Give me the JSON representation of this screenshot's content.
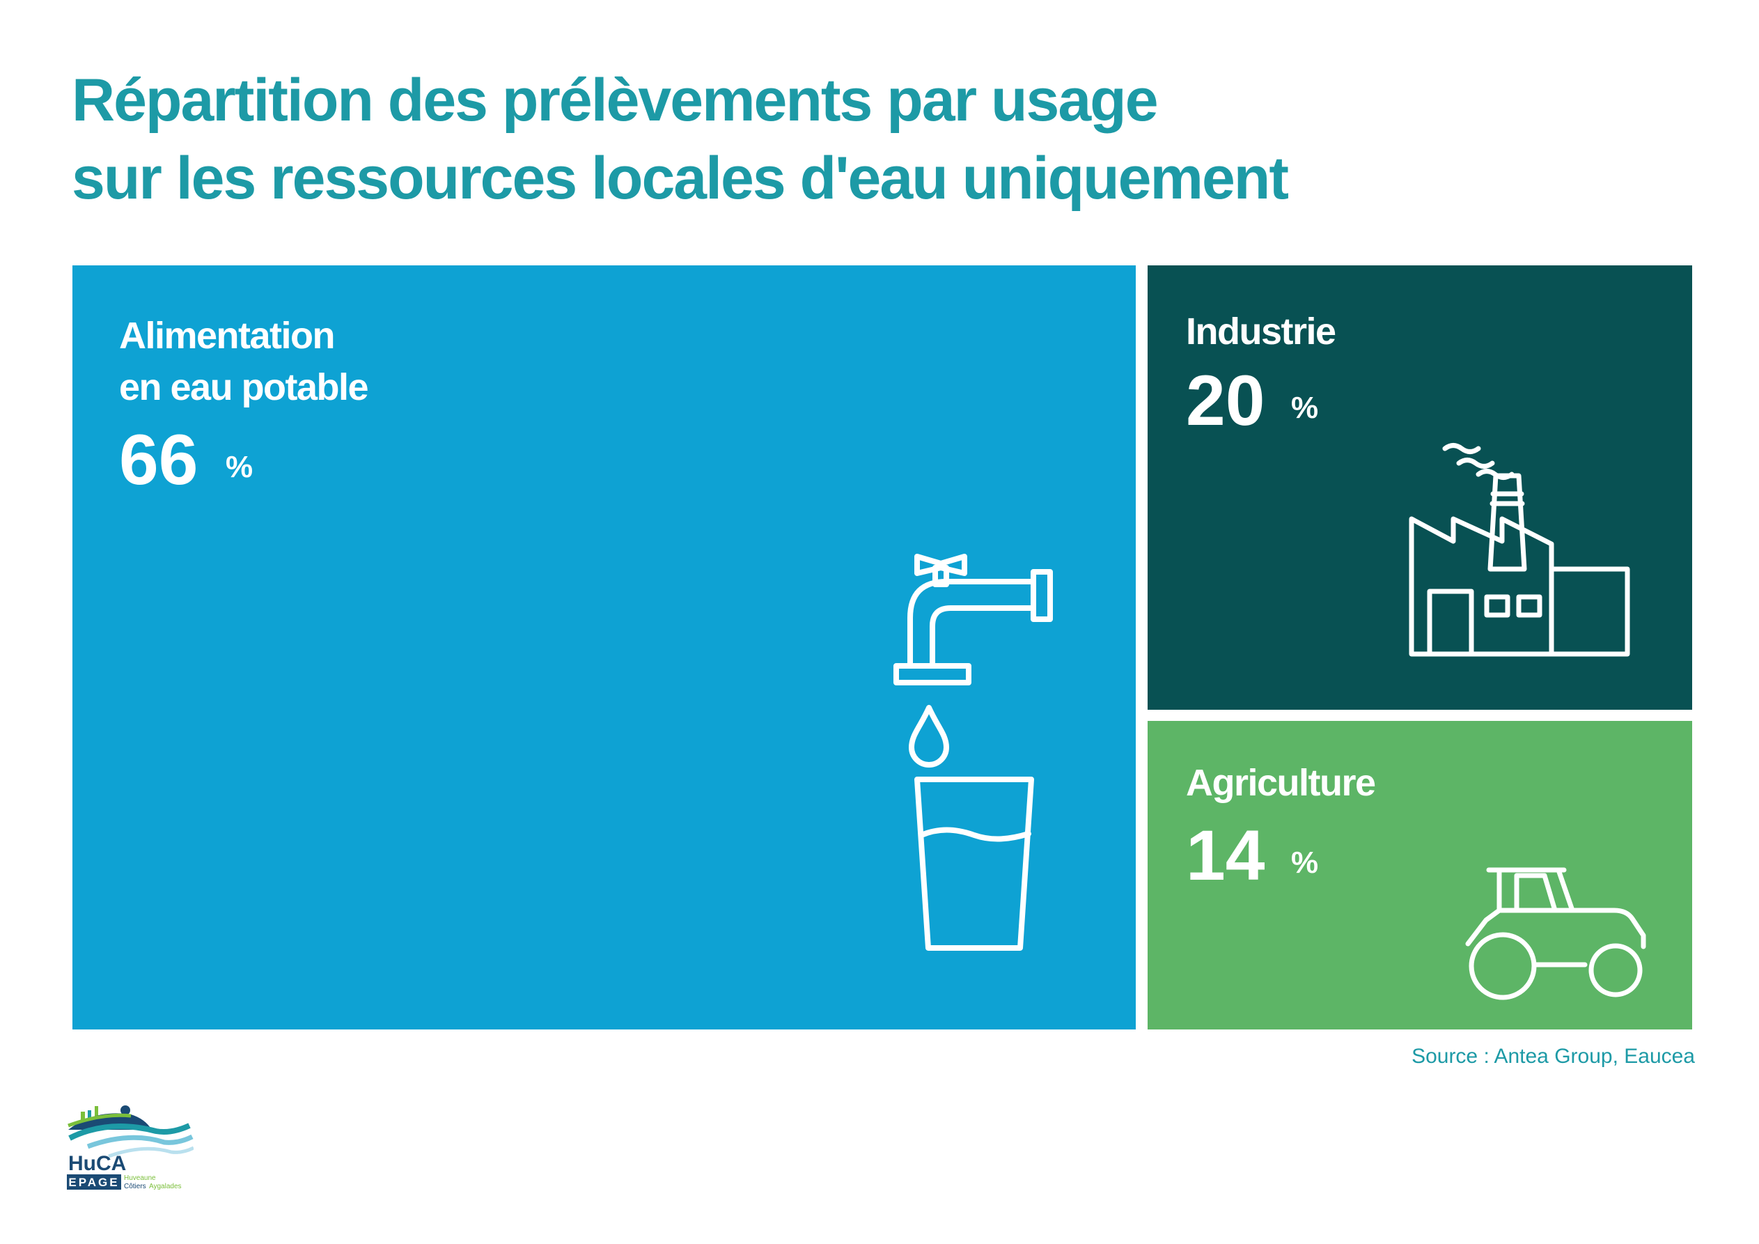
{
  "title_lines": [
    "Répartition des prélèvements par usage",
    "sur les ressources locales d'eau uniquement"
  ],
  "chart_data": {
    "type": "treemap",
    "unit": "%",
    "items": [
      {
        "label_lines": [
          "Alimentation",
          "en eau potable"
        ],
        "value": "66",
        "pct_symbol": "%",
        "color": "#0ea2d3",
        "icon": "tap-and-glass-icon"
      },
      {
        "label_lines": [
          "Industrie"
        ],
        "value": "20",
        "pct_symbol": "%",
        "color": "#085153",
        "icon": "factory-icon"
      },
      {
        "label_lines": [
          "Agriculture"
        ],
        "value": "14",
        "pct_symbol": "%",
        "color": "#5db566",
        "icon": "tractor-icon"
      }
    ]
  },
  "source": "Source :  Antea Group, Eaucea",
  "logo": {
    "name": "HuCA",
    "subname": "EPAGE",
    "tagline_1": "Huveaune",
    "tagline_2a": "Côtiers",
    "tagline_2b": "Aygalades"
  },
  "colors": {
    "title": "#1d9aa6",
    "logo_navy": "#1a4a74",
    "logo_green": "#7bbf3b"
  }
}
